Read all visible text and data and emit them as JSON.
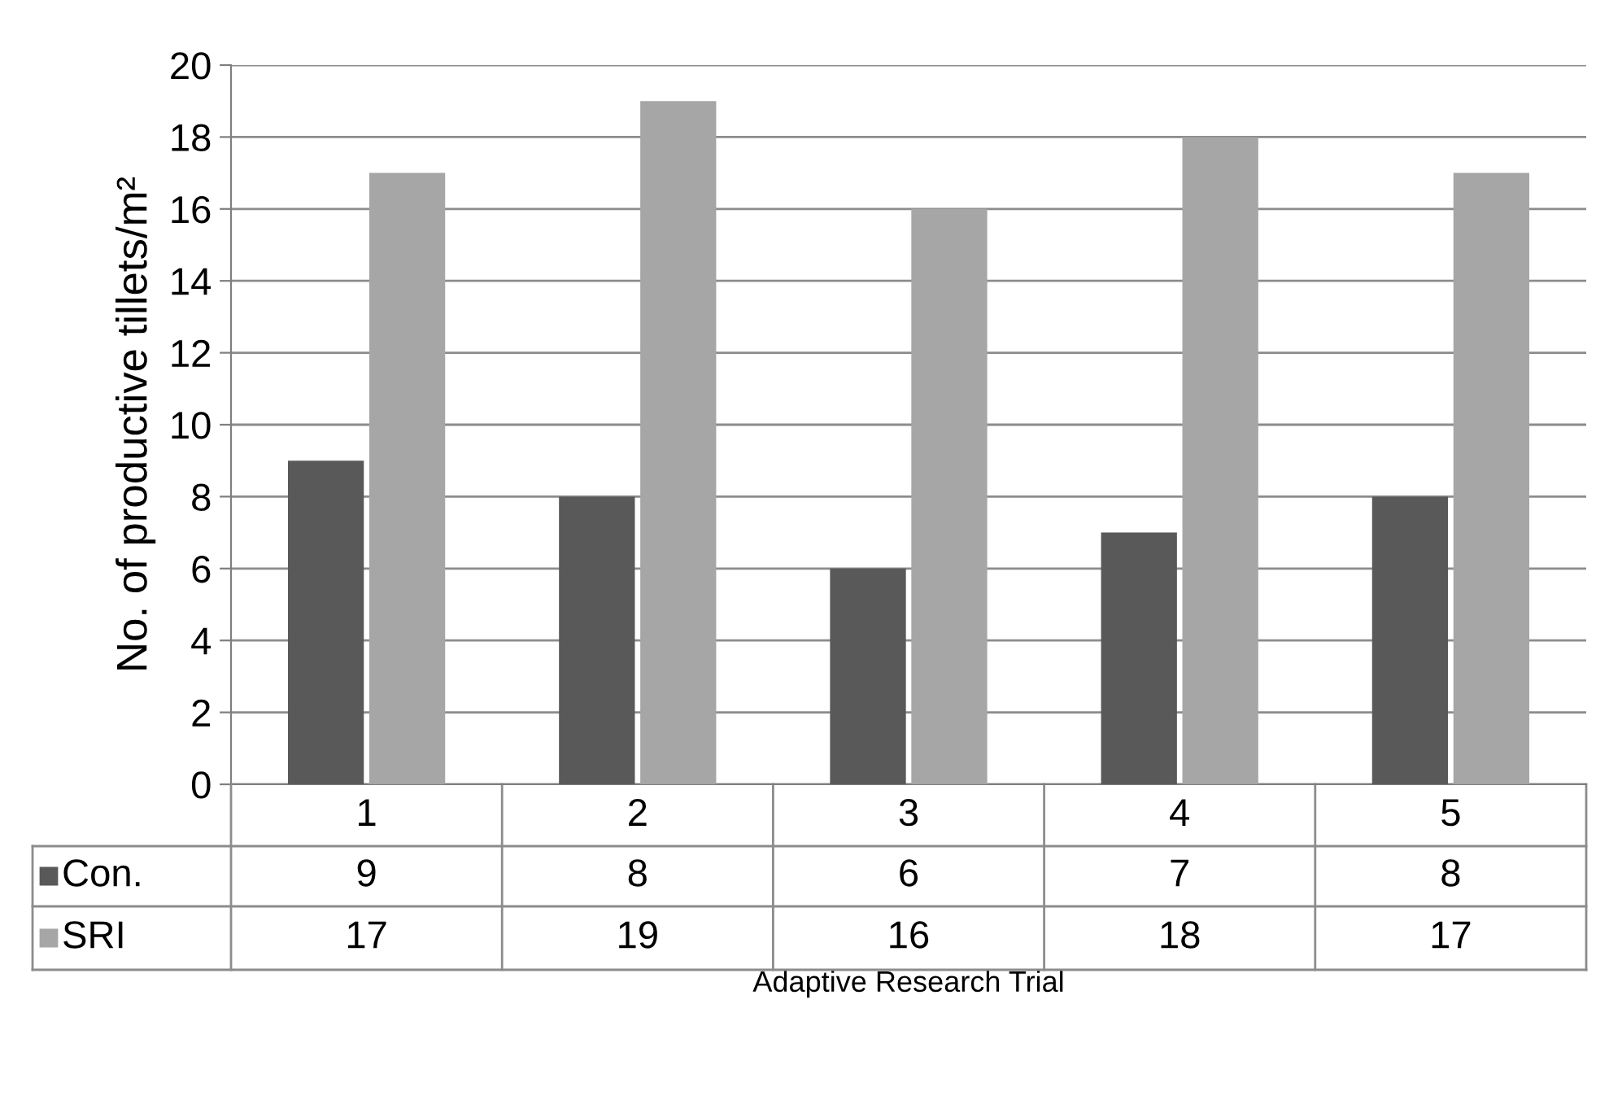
{
  "chart_data": {
    "type": "bar",
    "ylabel": "No. of productive tillets/m²",
    "xlabel": "Adaptive Research Trial",
    "categories": [
      "1",
      "2",
      "3",
      "4",
      "5"
    ],
    "series": [
      {
        "name": "Con.",
        "color": "#595959",
        "values": [
          9,
          8,
          6,
          7,
          8
        ]
      },
      {
        "name": "SRI",
        "color": "#a6a6a6",
        "values": [
          17,
          19,
          16,
          18,
          17
        ]
      }
    ],
    "ylim": [
      0,
      20
    ],
    "yticks": [
      0,
      2,
      4,
      6,
      8,
      10,
      12,
      14,
      16,
      18,
      20
    ],
    "grid": "y",
    "data_labels": true,
    "legend": "bottom left"
  }
}
